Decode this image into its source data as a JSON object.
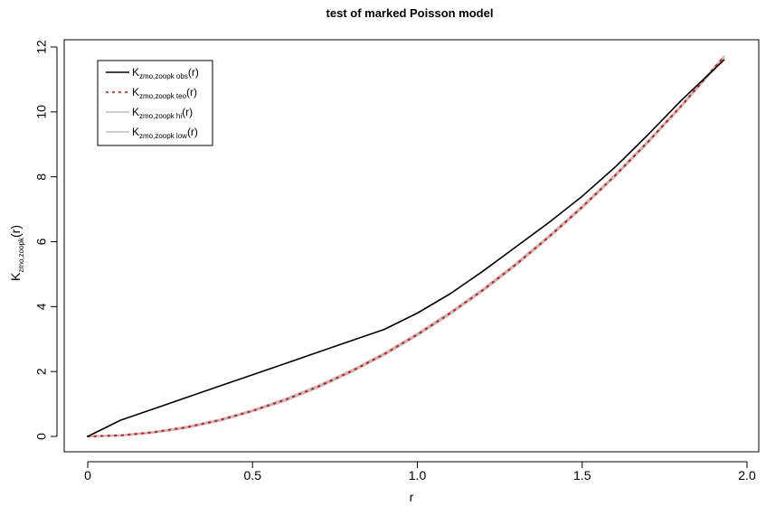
{
  "chart_data": {
    "type": "line",
    "title": "test of marked Poisson model",
    "xlabel": "r",
    "ylabel": {
      "main": "K",
      "sub": "zmo,zoopk",
      "suffix": "(r)"
    },
    "xlim": [
      0,
      1.93
    ],
    "ylim": [
      0,
      12
    ],
    "xticks": [
      0,
      0.5,
      1.0,
      1.5,
      2.0
    ],
    "xtick_labels": [
      "0",
      "0.5",
      "1.0",
      "1.5",
      "2.0"
    ],
    "yticks": [
      0,
      2,
      4,
      6,
      8,
      10,
      12
    ],
    "ytick_labels": [
      "0",
      "2",
      "4",
      "6",
      "8",
      "10",
      "12"
    ],
    "legend_position": "top-left",
    "grid": false,
    "series": [
      {
        "name": {
          "main": "K",
          "sub": "zmo,zoopk obs",
          "suffix": "(r)"
        },
        "color": "#000000",
        "style": "solid",
        "x": [
          0,
          0.1,
          0.2,
          0.3,
          0.4,
          0.5,
          0.6,
          0.7,
          0.8,
          0.9,
          1.0,
          1.1,
          1.2,
          1.3,
          1.4,
          1.5,
          1.6,
          1.7,
          1.8,
          1.93
        ],
        "y": [
          0,
          0.5,
          0.85,
          1.2,
          1.55,
          1.9,
          2.25,
          2.6,
          2.95,
          3.3,
          3.8,
          4.4,
          5.1,
          5.85,
          6.6,
          7.4,
          8.3,
          9.3,
          10.35,
          11.6
        ]
      },
      {
        "name": {
          "main": "K",
          "sub": "zmo,zoopk teo",
          "suffix": "(r)"
        },
        "color": "#ff0000",
        "style": "dotted",
        "x": [
          0,
          0.1,
          0.2,
          0.3,
          0.4,
          0.5,
          0.6,
          0.7,
          0.8,
          0.9,
          1.0,
          1.1,
          1.2,
          1.3,
          1.4,
          1.5,
          1.6,
          1.7,
          1.8,
          1.93
        ],
        "y": [
          0,
          0.03,
          0.13,
          0.28,
          0.5,
          0.79,
          1.13,
          1.54,
          2.01,
          2.54,
          3.14,
          3.8,
          4.52,
          5.31,
          6.16,
          7.07,
          8.04,
          9.08,
          10.18,
          11.7
        ]
      },
      {
        "name": {
          "main": "K",
          "sub": "zmo,zoopk hi",
          "suffix": "(r)"
        },
        "color": "#bebebe",
        "style": "solid",
        "x": [
          0,
          0.1,
          0.2,
          0.3,
          0.4,
          0.5,
          0.6,
          0.7,
          0.8,
          0.9,
          1.0,
          1.1,
          1.2,
          1.3,
          1.4,
          1.5,
          1.6,
          1.7,
          1.8,
          1.93
        ],
        "y": [
          0,
          0.04,
          0.14,
          0.3,
          0.52,
          0.81,
          1.16,
          1.57,
          2.04,
          2.57,
          3.17,
          3.83,
          4.55,
          5.34,
          6.19,
          7.1,
          8.07,
          9.11,
          10.2,
          11.72
        ]
      },
      {
        "name": {
          "main": "K",
          "sub": "zmo,zoopk low",
          "suffix": "(r)"
        },
        "color": "#bebebe",
        "style": "solid",
        "x": [
          0,
          0.1,
          0.2,
          0.3,
          0.4,
          0.5,
          0.6,
          0.7,
          0.8,
          0.9,
          1.0,
          1.1,
          1.2,
          1.3,
          1.4,
          1.5,
          1.6,
          1.7,
          1.8,
          1.93
        ],
        "y": [
          0,
          0.02,
          0.11,
          0.26,
          0.48,
          0.77,
          1.1,
          1.51,
          1.98,
          2.51,
          3.11,
          3.77,
          4.49,
          5.28,
          6.13,
          7.04,
          8.01,
          9.05,
          10.15,
          11.66
        ]
      }
    ]
  }
}
